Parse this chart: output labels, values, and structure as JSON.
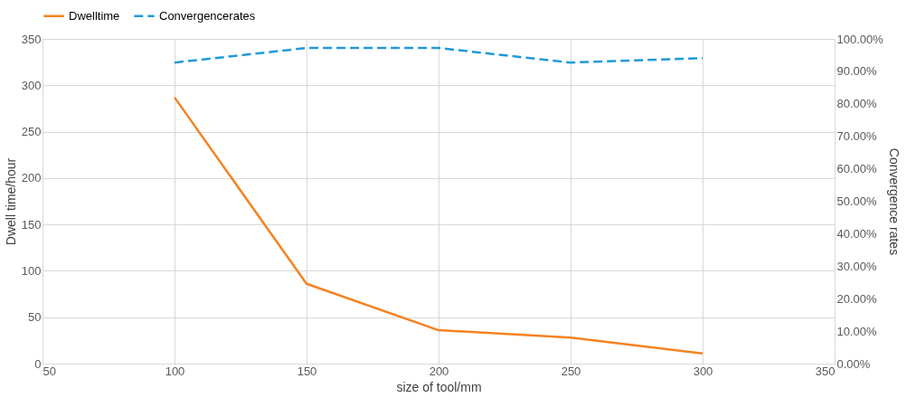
{
  "chart_data": {
    "type": "line",
    "xlabel": "size of tool/mm",
    "ylabel": "Dwell time/hour",
    "y2label": "Convergence rates",
    "x": [
      100,
      150,
      200,
      250,
      300
    ],
    "series": [
      {
        "name": "Dwelltime",
        "color": "#f58220",
        "values": [
          287,
          86,
          36,
          28,
          11
        ],
        "line_style": "solid"
      },
      {
        "name": "Convergencerates",
        "color": "#1f9ad6",
        "values": [
          92.7,
          97.2,
          97.2,
          92.7,
          94.1
        ],
        "axis": "y2",
        "line_style": "dashed"
      }
    ],
    "xlim": [
      50,
      350
    ],
    "xticks": [
      50,
      100,
      150,
      200,
      250,
      300,
      350
    ],
    "ylim": [
      0,
      350
    ],
    "yticks": [
      0,
      50,
      100,
      150,
      200,
      250,
      300,
      350
    ],
    "y2lim": [
      0,
      100
    ],
    "y2ticks": [
      {
        "value": 0,
        "label": "0.00%"
      },
      {
        "value": 10,
        "label": "10.00%"
      },
      {
        "value": 20,
        "label": "20.00%"
      },
      {
        "value": 30,
        "label": "30.00%"
      },
      {
        "value": 40,
        "label": "40.00%"
      },
      {
        "value": 50,
        "label": "50.00%"
      },
      {
        "value": 60,
        "label": "60.00%"
      },
      {
        "value": 70,
        "label": "70.00%"
      },
      {
        "value": 80,
        "label": "80.00%"
      },
      {
        "value": 90,
        "label": "90.00%"
      },
      {
        "value": 100,
        "label": "100.00%"
      }
    ],
    "grid": true,
    "legend": "top",
    "marker": "none"
  }
}
